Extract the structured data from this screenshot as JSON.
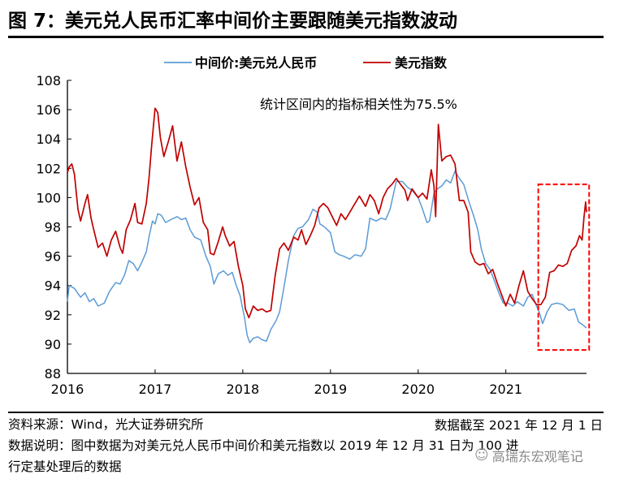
{
  "header": {
    "title": "图 7：美元兑人民币汇率中间价主要跟随美元指数波动"
  },
  "footer": {
    "source": "资料来源：Wind，光大证券研究所",
    "data_cutoff": "数据截至 2021 年 12 月 1 日",
    "explanation_line1": "数据说明：图中数据为对美元兑人民币中间价和美元指数以 2019 年 12 月 31 日为 100 进",
    "explanation_line2": "行定基处理后的数据",
    "watermark": "高瑞东宏观笔记"
  },
  "chart_data": {
    "type": "line",
    "title": "",
    "xlabel": "",
    "ylabel": "",
    "ylim": [
      88,
      108
    ],
    "yticks": [
      "108",
      "106",
      "104",
      "102",
      "100",
      "98",
      "96",
      "94",
      "92",
      "90",
      "88"
    ],
    "xlim": [
      2016.0,
      2021.92
    ],
    "xticks": [
      {
        "value": 2016,
        "label": "2016"
      },
      {
        "value": 2017,
        "label": "2017"
      },
      {
        "value": 2018,
        "label": "2018"
      },
      {
        "value": 2019,
        "label": "2019"
      },
      {
        "value": 2020,
        "label": "2020"
      },
      {
        "value": 2021,
        "label": "2021"
      }
    ],
    "grid": false,
    "legend_position": "top-center",
    "annotation": "统计区间内的指标相关性为75.5%",
    "highlight_box": {
      "x_from": 2021.37,
      "x_to": 2021.95,
      "y_from": 89.6,
      "y_to": 100.9,
      "color": "#ff0000",
      "style": "dashed"
    },
    "series": [
      {
        "name": "中间价:美元兑人民币",
        "color": "#5b9bd5",
        "points": [
          [
            2016.0,
            92.9
          ],
          [
            2016.02,
            94.0
          ],
          [
            2016.08,
            93.8
          ],
          [
            2016.15,
            93.2
          ],
          [
            2016.2,
            93.5
          ],
          [
            2016.25,
            92.9
          ],
          [
            2016.3,
            93.1
          ],
          [
            2016.35,
            92.6
          ],
          [
            2016.42,
            92.8
          ],
          [
            2016.48,
            93.6
          ],
          [
            2016.55,
            94.2
          ],
          [
            2016.6,
            94.1
          ],
          [
            2016.65,
            94.7
          ],
          [
            2016.7,
            95.7
          ],
          [
            2016.75,
            95.5
          ],
          [
            2016.8,
            95.0
          ],
          [
            2016.85,
            95.6
          ],
          [
            2016.9,
            96.3
          ],
          [
            2016.93,
            97.3
          ],
          [
            2016.97,
            98.4
          ],
          [
            2017.0,
            98.2
          ],
          [
            2017.03,
            98.9
          ],
          [
            2017.07,
            98.8
          ],
          [
            2017.12,
            98.3
          ],
          [
            2017.18,
            98.5
          ],
          [
            2017.25,
            98.7
          ],
          [
            2017.3,
            98.5
          ],
          [
            2017.35,
            98.6
          ],
          [
            2017.4,
            97.8
          ],
          [
            2017.45,
            97.3
          ],
          [
            2017.52,
            97.1
          ],
          [
            2017.58,
            96.0
          ],
          [
            2017.63,
            95.3
          ],
          [
            2017.67,
            94.1
          ],
          [
            2017.72,
            94.8
          ],
          [
            2017.78,
            95.0
          ],
          [
            2017.83,
            94.7
          ],
          [
            2017.88,
            94.9
          ],
          [
            2017.92,
            94.1
          ],
          [
            2017.97,
            93.3
          ],
          [
            2018.02,
            91.8
          ],
          [
            2018.05,
            90.6
          ],
          [
            2018.08,
            90.1
          ],
          [
            2018.12,
            90.4
          ],
          [
            2018.17,
            90.5
          ],
          [
            2018.22,
            90.3
          ],
          [
            2018.27,
            90.2
          ],
          [
            2018.32,
            91.0
          ],
          [
            2018.38,
            91.6
          ],
          [
            2018.42,
            92.2
          ],
          [
            2018.47,
            93.9
          ],
          [
            2018.52,
            95.7
          ],
          [
            2018.58,
            97.4
          ],
          [
            2018.63,
            97.9
          ],
          [
            2018.68,
            98.0
          ],
          [
            2018.75,
            98.5
          ],
          [
            2018.8,
            99.2
          ],
          [
            2018.85,
            99.0
          ],
          [
            2018.88,
            98.2
          ],
          [
            2018.93,
            98.0
          ],
          [
            2019.0,
            97.6
          ],
          [
            2019.05,
            96.3
          ],
          [
            2019.1,
            96.1
          ],
          [
            2019.15,
            96.0
          ],
          [
            2019.22,
            95.8
          ],
          [
            2019.28,
            96.1
          ],
          [
            2019.35,
            96.0
          ],
          [
            2019.4,
            96.5
          ],
          [
            2019.45,
            98.6
          ],
          [
            2019.52,
            98.4
          ],
          [
            2019.58,
            98.6
          ],
          [
            2019.63,
            98.5
          ],
          [
            2019.68,
            99.2
          ],
          [
            2019.75,
            101.1
          ],
          [
            2019.82,
            101.1
          ],
          [
            2019.88,
            100.7
          ],
          [
            2019.93,
            100.5
          ],
          [
            2020.0,
            100.0
          ],
          [
            2020.05,
            99.2
          ],
          [
            2020.1,
            98.3
          ],
          [
            2020.13,
            98.4
          ],
          [
            2020.18,
            100.3
          ],
          [
            2020.22,
            100.6
          ],
          [
            2020.27,
            100.8
          ],
          [
            2020.32,
            101.2
          ],
          [
            2020.37,
            101.0
          ],
          [
            2020.42,
            101.8
          ],
          [
            2020.47,
            101.3
          ],
          [
            2020.52,
            100.9
          ],
          [
            2020.58,
            99.7
          ],
          [
            2020.63,
            98.8
          ],
          [
            2020.68,
            97.8
          ],
          [
            2020.72,
            96.5
          ],
          [
            2020.77,
            95.5
          ],
          [
            2020.82,
            95.1
          ],
          [
            2020.87,
            94.3
          ],
          [
            2020.92,
            93.5
          ],
          [
            2020.97,
            92.8
          ],
          [
            2021.02,
            92.8
          ],
          [
            2021.08,
            92.6
          ],
          [
            2021.13,
            92.9
          ],
          [
            2021.2,
            92.6
          ],
          [
            2021.25,
            93.2
          ],
          [
            2021.3,
            93.4
          ],
          [
            2021.35,
            92.6
          ],
          [
            2021.38,
            92.2
          ],
          [
            2021.42,
            91.4
          ],
          [
            2021.47,
            92.2
          ],
          [
            2021.52,
            92.7
          ],
          [
            2021.58,
            92.8
          ],
          [
            2021.65,
            92.7
          ],
          [
            2021.72,
            92.3
          ],
          [
            2021.78,
            92.4
          ],
          [
            2021.83,
            91.5
          ],
          [
            2021.88,
            91.3
          ],
          [
            2021.92,
            91.1
          ]
        ]
      },
      {
        "name": "美元指数",
        "color": "#c00000",
        "points": [
          [
            2016.0,
            101.7
          ],
          [
            2016.02,
            102.1
          ],
          [
            2016.05,
            102.3
          ],
          [
            2016.08,
            101.6
          ],
          [
            2016.12,
            99.2
          ],
          [
            2016.15,
            98.4
          ],
          [
            2016.2,
            99.6
          ],
          [
            2016.23,
            100.2
          ],
          [
            2016.27,
            98.6
          ],
          [
            2016.3,
            97.8
          ],
          [
            2016.35,
            96.6
          ],
          [
            2016.4,
            96.9
          ],
          [
            2016.45,
            96.0
          ],
          [
            2016.5,
            97.1
          ],
          [
            2016.55,
            97.7
          ],
          [
            2016.6,
            96.6
          ],
          [
            2016.63,
            96.2
          ],
          [
            2016.67,
            97.8
          ],
          [
            2016.72,
            98.5
          ],
          [
            2016.77,
            99.6
          ],
          [
            2016.8,
            98.3
          ],
          [
            2016.85,
            98.2
          ],
          [
            2016.9,
            99.6
          ],
          [
            2016.93,
            101.3
          ],
          [
            2016.96,
            103.5
          ],
          [
            2017.0,
            106.1
          ],
          [
            2017.03,
            105.8
          ],
          [
            2017.06,
            104.1
          ],
          [
            2017.1,
            102.8
          ],
          [
            2017.15,
            103.8
          ],
          [
            2017.2,
            104.9
          ],
          [
            2017.25,
            102.5
          ],
          [
            2017.3,
            103.8
          ],
          [
            2017.35,
            102.1
          ],
          [
            2017.4,
            100.7
          ],
          [
            2017.45,
            99.5
          ],
          [
            2017.5,
            100.0
          ],
          [
            2017.55,
            98.3
          ],
          [
            2017.6,
            97.8
          ],
          [
            2017.63,
            96.2
          ],
          [
            2017.67,
            96.1
          ],
          [
            2017.72,
            97.0
          ],
          [
            2017.77,
            98.0
          ],
          [
            2017.8,
            97.4
          ],
          [
            2017.85,
            96.7
          ],
          [
            2017.9,
            97.0
          ],
          [
            2017.95,
            95.3
          ],
          [
            2018.0,
            94.0
          ],
          [
            2018.03,
            92.4
          ],
          [
            2018.07,
            91.8
          ],
          [
            2018.12,
            92.6
          ],
          [
            2018.17,
            92.3
          ],
          [
            2018.22,
            92.4
          ],
          [
            2018.27,
            92.2
          ],
          [
            2018.32,
            92.3
          ],
          [
            2018.37,
            94.7
          ],
          [
            2018.42,
            96.5
          ],
          [
            2018.47,
            96.9
          ],
          [
            2018.52,
            96.4
          ],
          [
            2018.58,
            97.3
          ],
          [
            2018.63,
            97.1
          ],
          [
            2018.67,
            97.8
          ],
          [
            2018.72,
            96.8
          ],
          [
            2018.77,
            97.4
          ],
          [
            2018.82,
            98.1
          ],
          [
            2018.87,
            99.3
          ],
          [
            2018.92,
            99.6
          ],
          [
            2018.97,
            99.3
          ],
          [
            2019.02,
            98.7
          ],
          [
            2019.07,
            98.1
          ],
          [
            2019.12,
            98.9
          ],
          [
            2019.17,
            98.5
          ],
          [
            2019.22,
            99.0
          ],
          [
            2019.28,
            99.6
          ],
          [
            2019.33,
            100.1
          ],
          [
            2019.4,
            99.4
          ],
          [
            2019.45,
            100.2
          ],
          [
            2019.5,
            99.8
          ],
          [
            2019.55,
            98.9
          ],
          [
            2019.6,
            100.0
          ],
          [
            2019.65,
            100.6
          ],
          [
            2019.7,
            100.9
          ],
          [
            2019.75,
            101.3
          ],
          [
            2019.8,
            100.9
          ],
          [
            2019.85,
            100.5
          ],
          [
            2019.88,
            99.8
          ],
          [
            2019.93,
            100.6
          ],
          [
            2020.0,
            100.0
          ],
          [
            2020.05,
            100.3
          ],
          [
            2020.1,
            99.9
          ],
          [
            2020.15,
            101.9
          ],
          [
            2020.18,
            100.8
          ],
          [
            2020.2,
            98.7
          ],
          [
            2020.23,
            105.0
          ],
          [
            2020.27,
            102.5
          ],
          [
            2020.32,
            102.8
          ],
          [
            2020.37,
            102.9
          ],
          [
            2020.42,
            102.3
          ],
          [
            2020.47,
            99.8
          ],
          [
            2020.52,
            99.8
          ],
          [
            2020.57,
            99.0
          ],
          [
            2020.6,
            96.3
          ],
          [
            2020.65,
            95.6
          ],
          [
            2020.7,
            95.4
          ],
          [
            2020.75,
            95.5
          ],
          [
            2020.8,
            94.8
          ],
          [
            2020.85,
            95.1
          ],
          [
            2020.9,
            94.2
          ],
          [
            2020.95,
            93.4
          ],
          [
            2021.0,
            92.6
          ],
          [
            2021.05,
            93.4
          ],
          [
            2021.1,
            92.8
          ],
          [
            2021.15,
            94.0
          ],
          [
            2021.2,
            95.0
          ],
          [
            2021.25,
            93.6
          ],
          [
            2021.3,
            93.1
          ],
          [
            2021.35,
            92.7
          ],
          [
            2021.4,
            92.7
          ],
          [
            2021.45,
            93.2
          ],
          [
            2021.5,
            94.9
          ],
          [
            2021.55,
            95.0
          ],
          [
            2021.6,
            95.4
          ],
          [
            2021.65,
            95.3
          ],
          [
            2021.7,
            95.5
          ],
          [
            2021.75,
            96.4
          ],
          [
            2021.8,
            96.7
          ],
          [
            2021.84,
            97.4
          ],
          [
            2021.87,
            97.1
          ],
          [
            2021.89,
            98.6
          ],
          [
            2021.91,
            99.7
          ],
          [
            2021.92,
            99.0
          ]
        ]
      }
    ]
  }
}
